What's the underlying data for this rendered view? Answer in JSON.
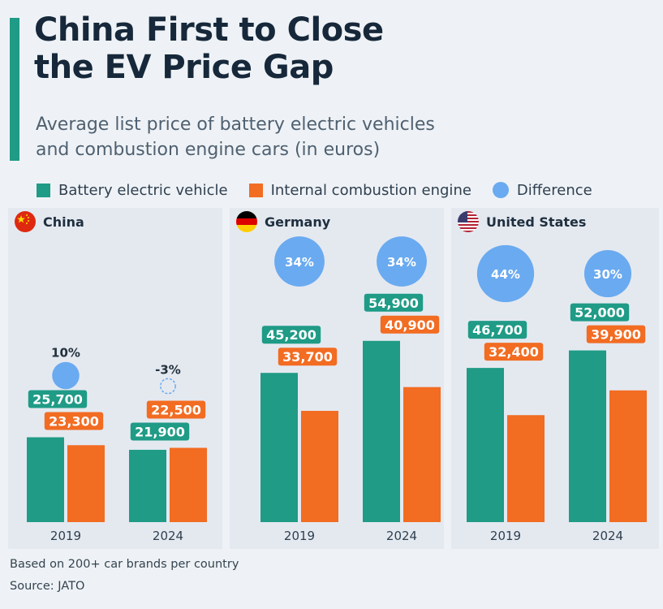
{
  "title_line1": "China First to Close",
  "title_line2": "the EV Price Gap",
  "subtitle_line1": "Average list price of battery electric vehicles",
  "subtitle_line2": "and combustion engine cars (in euros)",
  "legend": [
    {
      "label": "Battery electric vehicle",
      "color": "#1f9b86",
      "shape": "square"
    },
    {
      "label": "Internal combustion engine",
      "color": "#f26c22",
      "shape": "square"
    },
    {
      "label": "Difference",
      "color": "#6aaaf0",
      "shape": "circle"
    }
  ],
  "footer_note": "Based on 200+ car brands per country",
  "footer_source": "Source: JATO",
  "chart_data": {
    "type": "bar",
    "title": "China First to Close the EV Price Gap",
    "subtitle": "Average list price of battery electric vehicles and combustion engine cars (in euros)",
    "unit": "euros",
    "categories": [
      "2019",
      "2024"
    ],
    "groups": [
      {
        "country": "China",
        "flag": "china-flag-icon",
        "years": [
          "2019",
          "2024"
        ],
        "bev": [
          25700,
          21900
        ],
        "bev_labels": [
          "25,700",
          "21,900"
        ],
        "ice": [
          23300,
          22500
        ],
        "ice_labels": [
          "23,300",
          "22,500"
        ],
        "difference": [
          10,
          -3
        ],
        "difference_labels": [
          "10%",
          "-3%"
        ]
      },
      {
        "country": "Germany",
        "flag": "germany-flag-icon",
        "years": [
          "2019",
          "2024"
        ],
        "bev": [
          45200,
          54900
        ],
        "bev_labels": [
          "45,200",
          "54,900"
        ],
        "ice": [
          33700,
          40900
        ],
        "ice_labels": [
          "33,700",
          "40,900"
        ],
        "difference": [
          34,
          34
        ],
        "difference_labels": [
          "34%",
          "34%"
        ]
      },
      {
        "country": "United States",
        "flag": "us-flag-icon",
        "years": [
          "2019",
          "2024"
        ],
        "bev": [
          46700,
          52000
        ],
        "bev_labels": [
          "46,700",
          "52,000"
        ],
        "ice": [
          32400,
          39900
        ],
        "ice_labels": [
          "32,400",
          "39,900"
        ],
        "difference": [
          44,
          30
        ],
        "difference_labels": [
          "44%",
          "30%"
        ]
      }
    ],
    "series": [
      {
        "name": "Battery electric vehicle",
        "color": "#1f9b86"
      },
      {
        "name": "Internal combustion engine",
        "color": "#f26c22"
      },
      {
        "name": "Difference",
        "color": "#6aaaf0"
      }
    ],
    "ylim": [
      0,
      60000
    ],
    "grid": false,
    "legend_position": "top"
  }
}
